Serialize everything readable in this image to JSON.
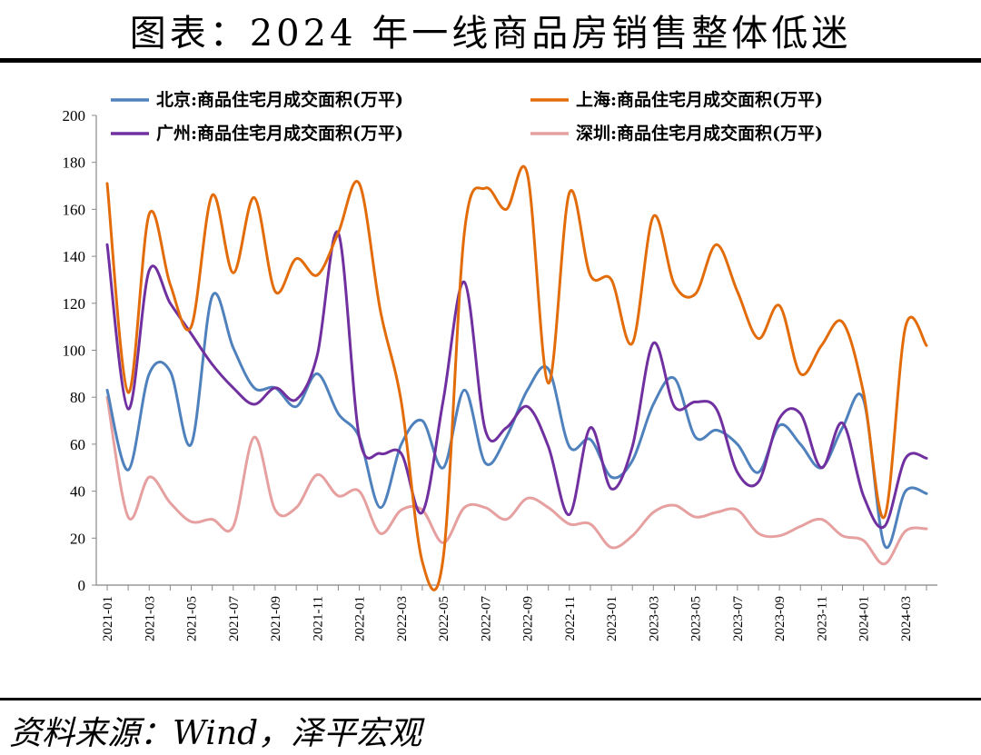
{
  "title": "图表：2024 年一线商品房销售整体低迷",
  "source": "资料来源：Wind，泽平宏观",
  "chart_data": {
    "type": "line",
    "ylim": [
      0,
      200
    ],
    "y_ticks": [
      0,
      20,
      40,
      60,
      80,
      100,
      120,
      140,
      160,
      180,
      200
    ],
    "x_tick_labels": [
      "2021-01",
      "2021-03",
      "2021-05",
      "2021-07",
      "2021-09",
      "2021-11",
      "2022-01",
      "2022-03",
      "2022-05",
      "2022-07",
      "2022-09",
      "2022-11",
      "2023-01",
      "2023-03",
      "2023-05",
      "2023-07",
      "2023-09",
      "2023-11",
      "2024-01",
      "2024-03"
    ],
    "x": [
      "2021-01",
      "2021-02",
      "2021-03",
      "2021-04",
      "2021-05",
      "2021-06",
      "2021-07",
      "2021-08",
      "2021-09",
      "2021-10",
      "2021-11",
      "2021-12",
      "2022-01",
      "2022-02",
      "2022-03",
      "2022-04",
      "2022-05",
      "2022-06",
      "2022-07",
      "2022-08",
      "2022-09",
      "2022-10",
      "2022-11",
      "2022-12",
      "2023-01",
      "2023-02",
      "2023-03",
      "2023-04",
      "2023-05",
      "2023-06",
      "2023-07",
      "2023-08",
      "2023-09",
      "2023-10",
      "2023-11",
      "2023-12",
      "2024-01",
      "2024-02",
      "2024-03",
      "2024-04"
    ],
    "legend_position": "top",
    "grid": false,
    "series": [
      {
        "name": "北京:商品住宅月成交面积(万平)",
        "color": "#4f81bd",
        "values": [
          83,
          49,
          90,
          91,
          60,
          123,
          101,
          84,
          84,
          76,
          90,
          73,
          63,
          33,
          60,
          70,
          50,
          83,
          52,
          63,
          83,
          92,
          59,
          62,
          46,
          53,
          77,
          88,
          63,
          66,
          60,
          48,
          68,
          60,
          50,
          67,
          79,
          17,
          40,
          39
        ]
      },
      {
        "name": "上海:商品住宅月成交面积(万平)",
        "color": "#e36c0a",
        "values": [
          171,
          82,
          158,
          128,
          110,
          166,
          133,
          165,
          125,
          139,
          132,
          150,
          171,
          117,
          78,
          10,
          12,
          150,
          169,
          160,
          175,
          86,
          167,
          132,
          130,
          103,
          157,
          128,
          124,
          145,
          125,
          105,
          119,
          90,
          102,
          112,
          82,
          29,
          110,
          102
        ]
      },
      {
        "name": "广州:商品住宅月成交面积(万平)",
        "color": "#7030a0",
        "values": [
          145,
          75,
          134,
          120,
          107,
          94,
          84,
          77,
          84,
          79,
          98,
          150,
          63,
          56,
          56,
          31,
          79,
          129,
          66,
          67,
          76,
          59,
          30,
          67,
          41,
          59,
          103,
          76,
          78,
          75,
          48,
          44,
          71,
          73,
          50,
          69,
          38,
          25,
          54,
          54
        ]
      },
      {
        "name": "深圳:商品住宅月成交面积(万平)",
        "color": "#e6a0a0",
        "values": [
          80,
          29,
          46,
          35,
          27,
          28,
          25,
          63,
          32,
          33,
          47,
          38,
          40,
          22,
          32,
          32,
          18,
          33,
          33,
          28,
          37,
          33,
          26,
          26,
          16,
          21,
          31,
          34,
          29,
          31,
          32,
          22,
          21,
          25,
          28,
          21,
          19,
          9,
          23,
          24
        ]
      }
    ]
  }
}
